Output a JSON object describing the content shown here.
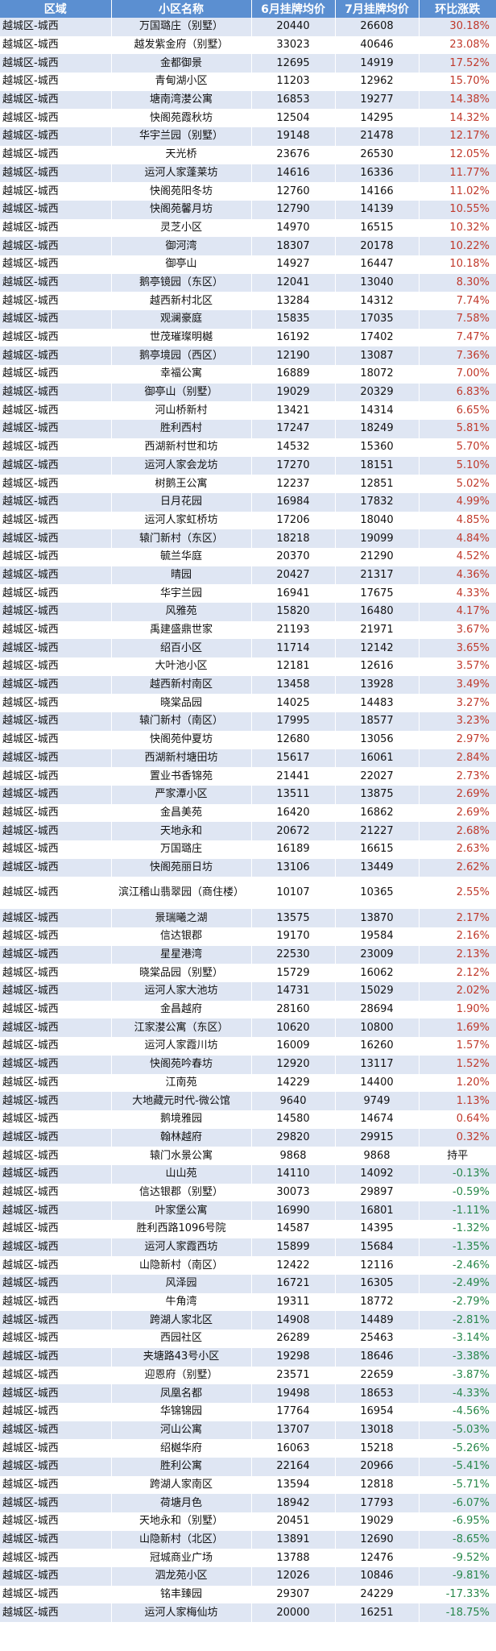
{
  "colors": {
    "header_bg": "#5b8fd1",
    "row_alt": "#dfe6f3",
    "up": "#c0392b",
    "down": "#27874a",
    "flat": "#111111"
  },
  "headers": [
    "区域",
    "小区名称",
    "6月挂牌均价",
    "7月挂牌均价",
    "环比涨跌"
  ],
  "rows": [
    [
      "越城区-城西",
      "万国璐庄（别墅）",
      "20440",
      "26608",
      "30.18%",
      "up"
    ],
    [
      "越城区-城西",
      "越发紫金府（别墅）",
      "33023",
      "40646",
      "23.08%",
      "up"
    ],
    [
      "越城区-城西",
      "金都御景",
      "12695",
      "14919",
      "17.52%",
      "up"
    ],
    [
      "越城区-城西",
      "青甸湖小区",
      "11203",
      "12962",
      "15.70%",
      "up"
    ],
    [
      "越城区-城西",
      "塘南湾漤公寓",
      "16853",
      "19277",
      "14.38%",
      "up"
    ],
    [
      "越城区-城西",
      "快阁苑霞秋坊",
      "12504",
      "14295",
      "14.32%",
      "up"
    ],
    [
      "越城区-城西",
      "华宇兰园（别墅）",
      "19148",
      "21478",
      "12.17%",
      "up"
    ],
    [
      "越城区-城西",
      "天光桥",
      "23676",
      "26530",
      "12.05%",
      "up"
    ],
    [
      "越城区-城西",
      "运河人家蓬莱坊",
      "14616",
      "16336",
      "11.77%",
      "up"
    ],
    [
      "越城区-城西",
      "快阁苑阳冬坊",
      "12760",
      "14166",
      "11.02%",
      "up"
    ],
    [
      "越城区-城西",
      "快阁苑馨月坊",
      "12790",
      "14139",
      "10.55%",
      "up"
    ],
    [
      "越城区-城西",
      "灵芝小区",
      "14970",
      "16515",
      "10.32%",
      "up"
    ],
    [
      "越城区-城西",
      "御河湾",
      "18307",
      "20178",
      "10.22%",
      "up"
    ],
    [
      "越城区-城西",
      "御亭山",
      "14927",
      "16447",
      "10.18%",
      "up"
    ],
    [
      "越城区-城西",
      "鹅亭镜园（东区）",
      "12041",
      "13040",
      "8.30%",
      "up"
    ],
    [
      "越城区-城西",
      "越西新村北区",
      "13284",
      "14312",
      "7.74%",
      "up"
    ],
    [
      "越城区-城西",
      "观澜豪庭",
      "15835",
      "17035",
      "7.58%",
      "up"
    ],
    [
      "越城区-城西",
      "世茂璀璨明樾",
      "16192",
      "17402",
      "7.47%",
      "up"
    ],
    [
      "越城区-城西",
      "鹅亭境园（西区）",
      "12190",
      "13087",
      "7.36%",
      "up"
    ],
    [
      "越城区-城西",
      "幸福公寓",
      "16889",
      "18072",
      "7.00%",
      "up"
    ],
    [
      "越城区-城西",
      "御亭山（别墅）",
      "19029",
      "20329",
      "6.83%",
      "up"
    ],
    [
      "越城区-城西",
      "河山桥新村",
      "13421",
      "14314",
      "6.65%",
      "up"
    ],
    [
      "越城区-城西",
      "胜利西村",
      "17247",
      "18249",
      "5.81%",
      "up"
    ],
    [
      "越城区-城西",
      "西湖新村世和坊",
      "14532",
      "15360",
      "5.70%",
      "up"
    ],
    [
      "越城区-城西",
      "运河人家会龙坊",
      "17270",
      "18151",
      "5.10%",
      "up"
    ],
    [
      "越城区-城西",
      "树鹅王公寓",
      "12237",
      "12851",
      "5.02%",
      "up"
    ],
    [
      "越城区-城西",
      "日月花园",
      "16984",
      "17832",
      "4.99%",
      "up"
    ],
    [
      "越城区-城西",
      "运河人家虹桥坊",
      "17206",
      "18040",
      "4.85%",
      "up"
    ],
    [
      "越城区-城西",
      "辕门新村（东区）",
      "18218",
      "19099",
      "4.84%",
      "up"
    ],
    [
      "越城区-城西",
      "毓兰华庭",
      "20370",
      "21290",
      "4.52%",
      "up"
    ],
    [
      "越城区-城西",
      "晴园",
      "20427",
      "21317",
      "4.36%",
      "up"
    ],
    [
      "越城区-城西",
      "华宇兰园",
      "16941",
      "17675",
      "4.33%",
      "up"
    ],
    [
      "越城区-城西",
      "风雅苑",
      "15820",
      "16480",
      "4.17%",
      "up"
    ],
    [
      "越城区-城西",
      "禹建盛鼎世家",
      "21193",
      "21971",
      "3.67%",
      "up"
    ],
    [
      "越城区-城西",
      "绍百小区",
      "11714",
      "12142",
      "3.65%",
      "up"
    ],
    [
      "越城区-城西",
      "大叶池小区",
      "12181",
      "12616",
      "3.57%",
      "up"
    ],
    [
      "越城区-城西",
      "越西新村南区",
      "13458",
      "13928",
      "3.49%",
      "up"
    ],
    [
      "越城区-城西",
      "晓棠品园",
      "14025",
      "14483",
      "3.27%",
      "up"
    ],
    [
      "越城区-城西",
      "辕门新村（南区）",
      "17995",
      "18577",
      "3.23%",
      "up"
    ],
    [
      "越城区-城西",
      "快阁苑仲夏坊",
      "12680",
      "13056",
      "2.97%",
      "up"
    ],
    [
      "越城区-城西",
      "西湖新村塘田坊",
      "15617",
      "16061",
      "2.84%",
      "up"
    ],
    [
      "越城区-城西",
      "置业书香锦苑",
      "21441",
      "22027",
      "2.73%",
      "up"
    ],
    [
      "越城区-城西",
      "严家潭小区",
      "13511",
      "13875",
      "2.69%",
      "up"
    ],
    [
      "越城区-城西",
      "金昌美苑",
      "16420",
      "16862",
      "2.69%",
      "up"
    ],
    [
      "越城区-城西",
      "天地永和",
      "20672",
      "21227",
      "2.68%",
      "up"
    ],
    [
      "越城区-城西",
      "万国璐庄",
      "16189",
      "16615",
      "2.63%",
      "up"
    ],
    [
      "越城区-城西",
      "快阁苑丽日坊",
      "13106",
      "13449",
      "2.62%",
      "up"
    ],
    [
      "越城区-城西",
      "滨江稽山翡翠园（商住楼）",
      "10107",
      "10365",
      "2.55%",
      "up"
    ],
    [
      "越城区-城西",
      "景瑞曦之湖",
      "13575",
      "13870",
      "2.17%",
      "up"
    ],
    [
      "越城区-城西",
      "信达银郡",
      "19170",
      "19584",
      "2.16%",
      "up"
    ],
    [
      "越城区-城西",
      "星星港湾",
      "22530",
      "23009",
      "2.13%",
      "up"
    ],
    [
      "越城区-城西",
      "晓棠品园（别墅）",
      "15729",
      "16062",
      "2.12%",
      "up"
    ],
    [
      "越城区-城西",
      "运河人家大池坊",
      "14731",
      "15029",
      "2.02%",
      "up"
    ],
    [
      "越城区-城西",
      "金昌越府",
      "28160",
      "28694",
      "1.90%",
      "up"
    ],
    [
      "越城区-城西",
      "江家漤公寓（东区）",
      "10620",
      "10800",
      "1.69%",
      "up"
    ],
    [
      "越城区-城西",
      "运河人家霞川坊",
      "16009",
      "16260",
      "1.57%",
      "up"
    ],
    [
      "越城区-城西",
      "快阁苑吟春坊",
      "12920",
      "13117",
      "1.52%",
      "up"
    ],
    [
      "越城区-城西",
      "江南苑",
      "14229",
      "14400",
      "1.20%",
      "up"
    ],
    [
      "越城区-城西",
      "大地藏元时代-微公馆",
      "9640",
      "9749",
      "1.13%",
      "up"
    ],
    [
      "越城区-城西",
      "鹅境雅园",
      "14580",
      "14674",
      "0.64%",
      "up"
    ],
    [
      "越城区-城西",
      "翰林越府",
      "29820",
      "29915",
      "0.32%",
      "up"
    ],
    [
      "越城区-城西",
      "辕门水景公寓",
      "9868",
      "9868",
      "持平",
      "flat"
    ],
    [
      "越城区-城西",
      "山山苑",
      "14110",
      "14092",
      "-0.13%",
      "down"
    ],
    [
      "越城区-城西",
      "信达银郡（别墅）",
      "30073",
      "29897",
      "-0.59%",
      "down"
    ],
    [
      "越城区-城西",
      "叶家堡公寓",
      "16990",
      "16801",
      "-1.11%",
      "down"
    ],
    [
      "越城区-城西",
      "胜利西路1096号院",
      "14587",
      "14395",
      "-1.32%",
      "down"
    ],
    [
      "越城区-城西",
      "运河人家霞西坊",
      "15899",
      "15684",
      "-1.35%",
      "down"
    ],
    [
      "越城区-城西",
      "山隐新村（南区）",
      "12422",
      "12116",
      "-2.46%",
      "down"
    ],
    [
      "越城区-城西",
      "风泽园",
      "16721",
      "16305",
      "-2.49%",
      "down"
    ],
    [
      "越城区-城西",
      "牛角湾",
      "19311",
      "18772",
      "-2.79%",
      "down"
    ],
    [
      "越城区-城西",
      "跨湖人家北区",
      "14908",
      "14489",
      "-2.81%",
      "down"
    ],
    [
      "越城区-城西",
      "西园社区",
      "26289",
      "25463",
      "-3.14%",
      "down"
    ],
    [
      "越城区-城西",
      "夹塘路43号小区",
      "19298",
      "18646",
      "-3.38%",
      "down"
    ],
    [
      "越城区-城西",
      "迎恩府（别墅）",
      "23571",
      "22659",
      "-3.87%",
      "down"
    ],
    [
      "越城区-城西",
      "凤凰名都",
      "19498",
      "18653",
      "-4.33%",
      "down"
    ],
    [
      "越城区-城西",
      "华锦锦园",
      "17764",
      "16954",
      "-4.56%",
      "down"
    ],
    [
      "越城区-城西",
      "河山公寓",
      "13707",
      "13018",
      "-5.03%",
      "down"
    ],
    [
      "越城区-城西",
      "绍樾华府",
      "16063",
      "15218",
      "-5.26%",
      "down"
    ],
    [
      "越城区-城西",
      "胜利公寓",
      "22164",
      "20966",
      "-5.41%",
      "down"
    ],
    [
      "越城区-城西",
      "跨湖人家南区",
      "13594",
      "12818",
      "-5.71%",
      "down"
    ],
    [
      "越城区-城西",
      "荷塘月色",
      "18942",
      "17793",
      "-6.07%",
      "down"
    ],
    [
      "越城区-城西",
      "天地永和（别墅）",
      "20451",
      "19029",
      "-6.95%",
      "down"
    ],
    [
      "越城区-城西",
      "山隐新村（北区）",
      "13891",
      "12690",
      "-8.65%",
      "down"
    ],
    [
      "越城区-城西",
      "冠城商业广场",
      "13788",
      "12476",
      "-9.52%",
      "down"
    ],
    [
      "越城区-城西",
      "泗龙苑小区",
      "12026",
      "10846",
      "-9.81%",
      "down"
    ],
    [
      "越城区-城西",
      "铭丰臻园",
      "29307",
      "24229",
      "-17.33%",
      "down"
    ],
    [
      "越城区-城西",
      "运河人家梅仙坊",
      "20000",
      "16251",
      "-18.75%",
      "down"
    ]
  ]
}
